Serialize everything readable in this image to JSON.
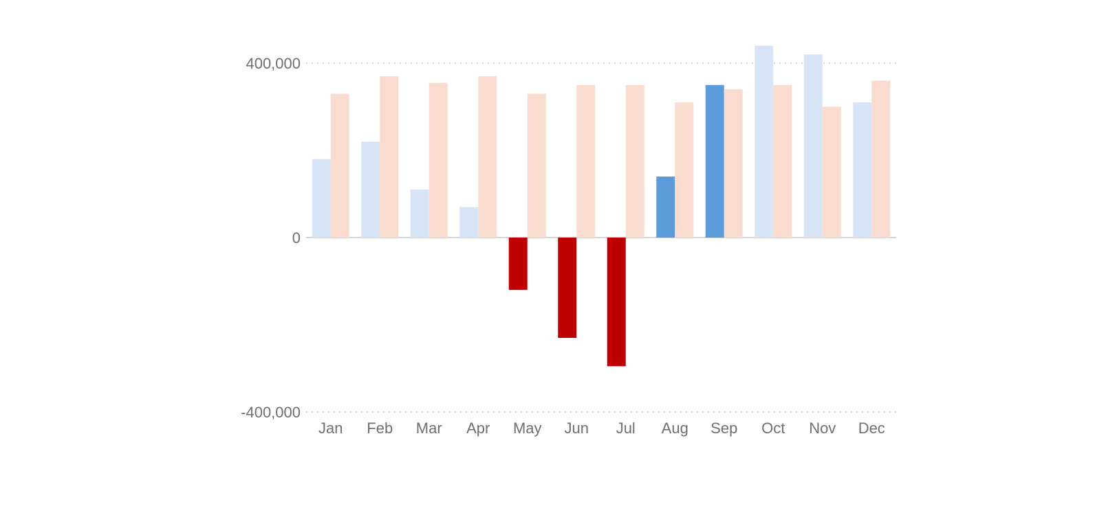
{
  "chart_data": {
    "type": "bar",
    "categories": [
      "Jan",
      "Feb",
      "Mar",
      "Apr",
      "May",
      "Jun",
      "Jul",
      "Aug",
      "Sep",
      "Oct",
      "Nov",
      "Dec"
    ],
    "series": [
      {
        "values": [
          180000,
          220000,
          110000,
          70000,
          -120000,
          -230000,
          -295000,
          140000,
          350000,
          440000,
          420000,
          310000
        ],
        "colors": [
          "#d6e4f5",
          "#d6e4f5",
          "#d6e4f5",
          "#d6e4f5",
          "#bf0000",
          "#bf0000",
          "#bf0000",
          "#5b9bda",
          "#5b9bda",
          "#d6e4f5",
          "#d6e4f5",
          "#d6e4f5"
        ]
      },
      {
        "values": [
          330000,
          370000,
          355000,
          370000,
          330000,
          350000,
          350000,
          310000,
          340000,
          350000,
          300000,
          360000
        ],
        "colors": [
          "#f9dccf",
          "#f9dccf",
          "#f9dccf",
          "#f9dccf",
          "#f9dccf",
          "#f9dccf",
          "#f9dccf",
          "#f9dccf",
          "#f9dccf",
          "#f9dccf",
          "#f9dccf",
          "#f9dccf"
        ]
      }
    ],
    "yticks": [
      {
        "value": 400000,
        "label": "400,000"
      },
      {
        "value": 0,
        "label": "0"
      },
      {
        "value": -400000,
        "label": "-400,000"
      }
    ],
    "ylim": [
      -400000,
      400000
    ],
    "grid": "dotted",
    "zero_line_color": "#c7c7cc",
    "grid_color": "#c7c7cc"
  }
}
